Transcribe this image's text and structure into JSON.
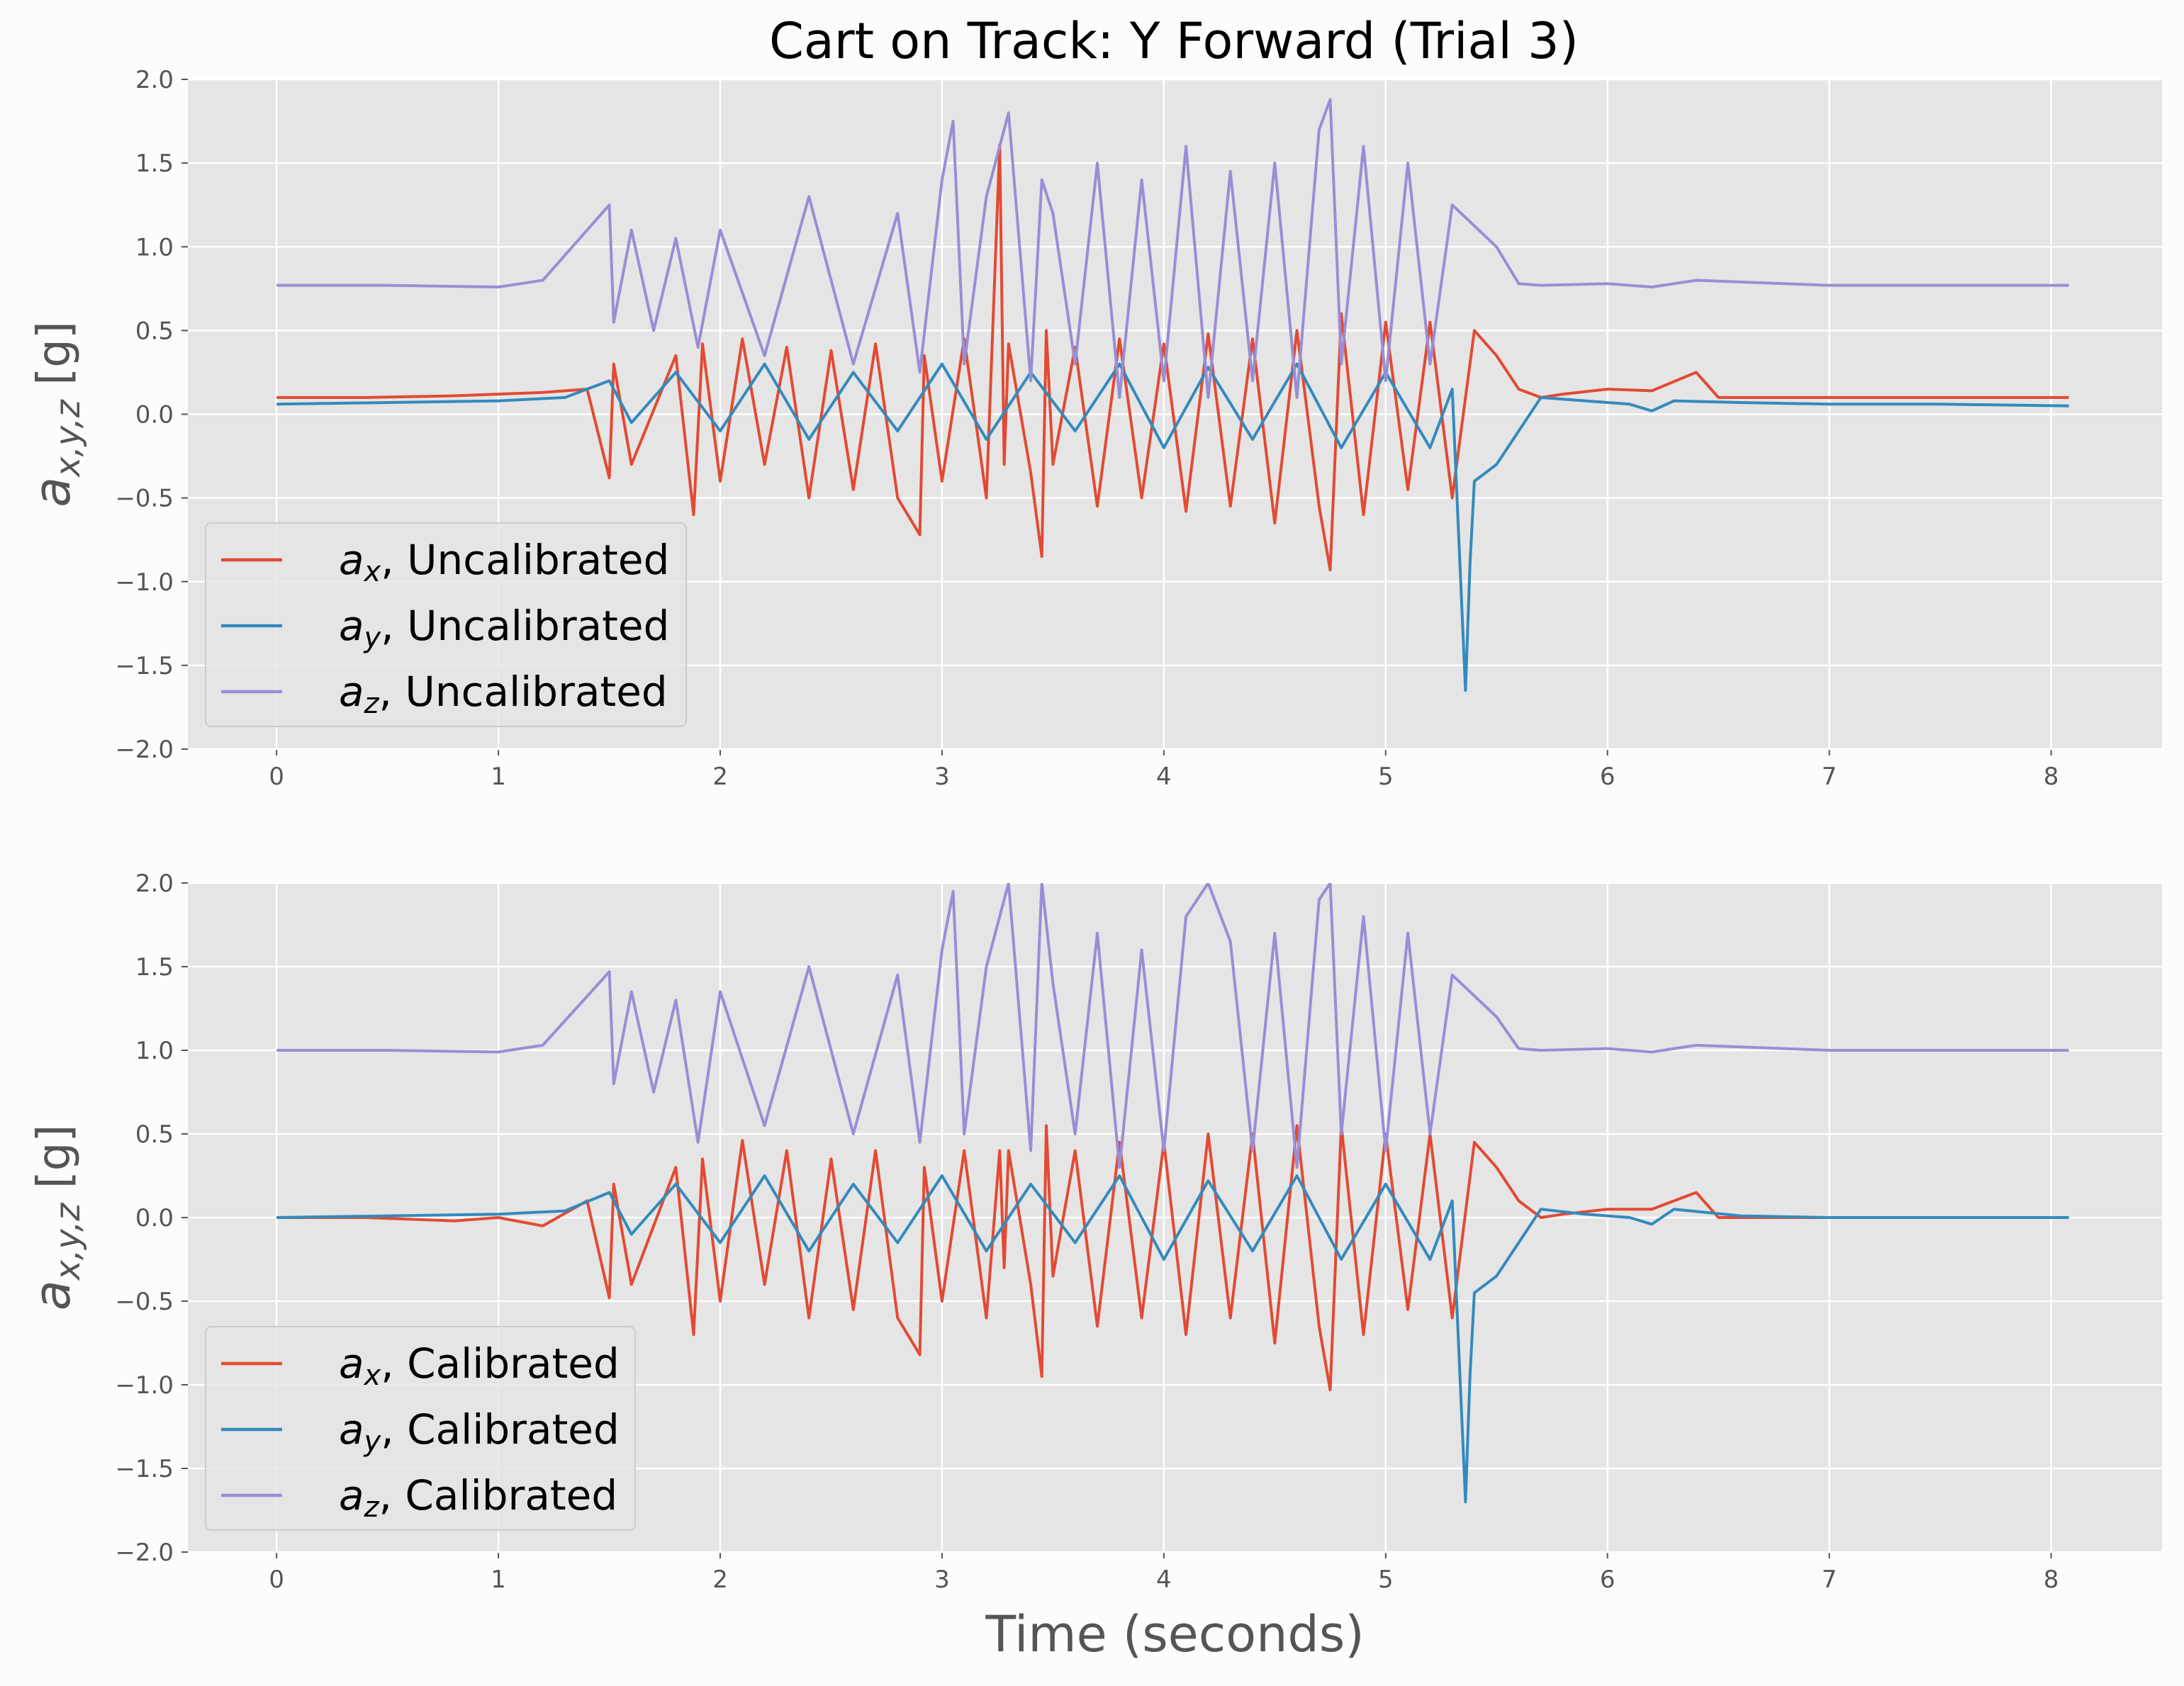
{
  "title": "Cart on Track: Y Forward (Trial 3)",
  "colors": {
    "ax": "#E24A33",
    "ay": "#348ABD",
    "az": "#988ED5",
    "panel_bg": "#E5E5E5",
    "grid": "#FFFFFF"
  },
  "chart_data": [
    {
      "type": "line",
      "ylabel": "a_{x,y,z} [g]",
      "xlabel": "",
      "xlim": [
        -0.4,
        8.5
      ],
      "ylim": [
        -2.0,
        2.0
      ],
      "xticks": [
        "0",
        "1",
        "2",
        "3",
        "4",
        "5",
        "6",
        "7",
        "8"
      ],
      "yticks": [
        "−2.0",
        "−1.5",
        "−1.0",
        "−0.5",
        "0.0",
        "0.5",
        "1.0",
        "1.5",
        "2.0"
      ],
      "grid": true,
      "legend_position": "lower-left",
      "series": [
        {
          "name": "a_x, Uncalibrated",
          "legend_var": "x",
          "legend_rest": ", Uncalibrated",
          "color": "#E24A33",
          "x": [
            0,
            0.4,
            0.8,
            1.0,
            1.2,
            1.4,
            1.5,
            1.52,
            1.6,
            1.8,
            1.88,
            1.92,
            2.0,
            2.1,
            2.2,
            2.3,
            2.4,
            2.5,
            2.6,
            2.7,
            2.8,
            2.9,
            2.92,
            3.0,
            3.1,
            3.2,
            3.26,
            3.28,
            3.3,
            3.4,
            3.45,
            3.47,
            3.5,
            3.6,
            3.7,
            3.8,
            3.9,
            4.0,
            4.1,
            4.2,
            4.3,
            4.4,
            4.5,
            4.6,
            4.7,
            4.75,
            4.8,
            4.9,
            5.0,
            5.1,
            5.2,
            5.3,
            5.4,
            5.5,
            5.6,
            5.7,
            5.8,
            6.0,
            6.2,
            6.4,
            6.5,
            7.0,
            7.5,
            8.08
          ],
          "y": [
            0.1,
            0.1,
            0.11,
            0.12,
            0.13,
            0.15,
            -0.38,
            0.3,
            -0.3,
            0.35,
            -0.6,
            0.42,
            -0.4,
            0.45,
            -0.3,
            0.4,
            -0.5,
            0.38,
            -0.45,
            0.42,
            -0.5,
            -0.72,
            0.35,
            -0.4,
            0.45,
            -0.5,
            1.61,
            -0.3,
            0.42,
            -0.35,
            -0.85,
            0.5,
            -0.3,
            0.4,
            -0.55,
            0.45,
            -0.5,
            0.42,
            -0.58,
            0.48,
            -0.55,
            0.45,
            -0.65,
            0.5,
            -0.55,
            -0.93,
            0.6,
            -0.6,
            0.55,
            -0.45,
            0.55,
            -0.5,
            0.5,
            0.35,
            0.15,
            0.1,
            0.12,
            0.15,
            0.14,
            0.25,
            0.1,
            0.1,
            0.1,
            0.1
          ]
        },
        {
          "name": "a_y, Uncalibrated",
          "legend_var": "y",
          "legend_rest": ", Uncalibrated",
          "color": "#348ABD",
          "x": [
            0,
            0.5,
            1.0,
            1.3,
            1.5,
            1.6,
            1.8,
            2.0,
            2.2,
            2.4,
            2.6,
            2.8,
            3.0,
            3.2,
            3.4,
            3.6,
            3.8,
            4.0,
            4.2,
            4.4,
            4.6,
            4.8,
            5.0,
            5.2,
            5.3,
            5.36,
            5.38,
            5.4,
            5.5,
            5.6,
            5.7,
            5.9,
            6.1,
            6.2,
            6.3,
            6.6,
            7.0,
            7.5,
            8.08
          ],
          "y": [
            0.06,
            0.07,
            0.08,
            0.1,
            0.2,
            -0.05,
            0.25,
            -0.1,
            0.3,
            -0.15,
            0.25,
            -0.1,
            0.3,
            -0.15,
            0.25,
            -0.1,
            0.3,
            -0.2,
            0.28,
            -0.15,
            0.3,
            -0.2,
            0.25,
            -0.2,
            0.15,
            -1.65,
            -0.9,
            -0.4,
            -0.3,
            -0.1,
            0.1,
            0.08,
            0.06,
            0.02,
            0.08,
            0.07,
            0.06,
            0.06,
            0.05
          ]
        },
        {
          "name": "a_z, Uncalibrated",
          "legend_var": "z",
          "legend_rest": ", Uncalibrated",
          "color": "#988ED5",
          "x": [
            0,
            0.5,
            1.0,
            1.2,
            1.5,
            1.52,
            1.6,
            1.7,
            1.8,
            1.9,
            2.0,
            2.2,
            2.4,
            2.6,
            2.8,
            2.9,
            3.0,
            3.05,
            3.1,
            3.2,
            3.3,
            3.4,
            3.45,
            3.5,
            3.6,
            3.7,
            3.8,
            3.9,
            4.0,
            4.1,
            4.2,
            4.3,
            4.4,
            4.5,
            4.6,
            4.7,
            4.75,
            4.8,
            4.9,
            5.0,
            5.1,
            5.2,
            5.3,
            5.5,
            5.6,
            5.7,
            6.0,
            6.2,
            6.4,
            7.0,
            7.5,
            8.08
          ],
          "y": [
            0.77,
            0.77,
            0.76,
            0.8,
            1.25,
            0.55,
            1.1,
            0.5,
            1.05,
            0.4,
            1.1,
            0.35,
            1.3,
            0.3,
            1.2,
            0.25,
            1.4,
            1.75,
            0.3,
            1.3,
            1.8,
            0.2,
            1.4,
            1.2,
            0.3,
            1.5,
            0.1,
            1.4,
            0.2,
            1.6,
            0.1,
            1.45,
            0.2,
            1.5,
            0.1,
            1.7,
            1.88,
            0.3,
            1.6,
            0.2,
            1.5,
            0.3,
            1.25,
            1.0,
            0.78,
            0.77,
            0.78,
            0.76,
            0.8,
            0.77,
            0.77,
            0.77
          ]
        }
      ]
    },
    {
      "type": "line",
      "ylabel": "a_{x,y,z} [g]",
      "xlabel": "Time (seconds)",
      "xlim": [
        -0.4,
        8.5
      ],
      "ylim": [
        -2.0,
        2.0
      ],
      "xticks": [
        "0",
        "1",
        "2",
        "3",
        "4",
        "5",
        "6",
        "7",
        "8"
      ],
      "yticks": [
        "−2.0",
        "−1.5",
        "−1.0",
        "−0.5",
        "0.0",
        "0.5",
        "1.0",
        "1.5",
        "2.0"
      ],
      "grid": true,
      "legend_position": "lower-left",
      "series": [
        {
          "name": "a_x, Calibrated",
          "legend_var": "x",
          "legend_rest": ", Calibrated",
          "color": "#E24A33",
          "x": [
            0,
            0.4,
            0.8,
            1.0,
            1.2,
            1.4,
            1.5,
            1.52,
            1.6,
            1.8,
            1.88,
            1.92,
            2.0,
            2.1,
            2.2,
            2.3,
            2.4,
            2.5,
            2.6,
            2.7,
            2.8,
            2.9,
            2.92,
            3.0,
            3.1,
            3.2,
            3.26,
            3.28,
            3.3,
            3.4,
            3.45,
            3.47,
            3.5,
            3.6,
            3.7,
            3.8,
            3.9,
            4.0,
            4.1,
            4.2,
            4.3,
            4.4,
            4.5,
            4.6,
            4.7,
            4.75,
            4.8,
            4.9,
            5.0,
            5.1,
            5.2,
            5.3,
            5.4,
            5.5,
            5.6,
            5.7,
            5.8,
            6.0,
            6.2,
            6.4,
            6.5,
            7.0,
            7.5,
            8.08
          ],
          "y": [
            0.0,
            0.0,
            -0.02,
            0.0,
            -0.05,
            0.1,
            -0.48,
            0.2,
            -0.4,
            0.3,
            -0.7,
            0.35,
            -0.5,
            0.46,
            -0.4,
            0.4,
            -0.6,
            0.35,
            -0.55,
            0.4,
            -0.6,
            -0.82,
            0.3,
            -0.5,
            0.4,
            -0.6,
            0.4,
            -0.3,
            0.4,
            -0.4,
            -0.95,
            0.55,
            -0.35,
            0.4,
            -0.65,
            0.45,
            -0.6,
            0.45,
            -0.7,
            0.5,
            -0.6,
            0.5,
            -0.75,
            0.55,
            -0.65,
            -1.03,
            0.55,
            -0.7,
            0.5,
            -0.55,
            0.5,
            -0.6,
            0.45,
            0.3,
            0.1,
            0.0,
            0.02,
            0.05,
            0.05,
            0.15,
            0.0,
            0.0,
            0.0,
            0.0
          ]
        },
        {
          "name": "a_y, Calibrated",
          "legend_var": "y",
          "legend_rest": ", Calibrated",
          "color": "#348ABD",
          "x": [
            0,
            0.5,
            1.0,
            1.3,
            1.5,
            1.6,
            1.8,
            2.0,
            2.2,
            2.4,
            2.6,
            2.8,
            3.0,
            3.2,
            3.4,
            3.6,
            3.8,
            4.0,
            4.2,
            4.4,
            4.6,
            4.8,
            5.0,
            5.2,
            5.3,
            5.36,
            5.38,
            5.4,
            5.5,
            5.6,
            5.7,
            5.9,
            6.1,
            6.2,
            6.3,
            6.6,
            7.0,
            7.5,
            8.08
          ],
          "y": [
            0.0,
            0.01,
            0.02,
            0.04,
            0.15,
            -0.1,
            0.2,
            -0.15,
            0.25,
            -0.2,
            0.2,
            -0.15,
            0.25,
            -0.2,
            0.2,
            -0.15,
            0.25,
            -0.25,
            0.22,
            -0.2,
            0.25,
            -0.25,
            0.2,
            -0.25,
            0.1,
            -1.7,
            -0.95,
            -0.45,
            -0.35,
            -0.15,
            0.05,
            0.02,
            0.0,
            -0.04,
            0.05,
            0.01,
            0.0,
            0.0,
            0.0
          ]
        },
        {
          "name": "a_z, Calibrated",
          "legend_var": "z",
          "legend_rest": ", Calibrated",
          "color": "#988ED5",
          "x": [
            0,
            0.5,
            1.0,
            1.2,
            1.5,
            1.52,
            1.6,
            1.7,
            1.8,
            1.9,
            2.0,
            2.2,
            2.4,
            2.6,
            2.8,
            2.9,
            3.0,
            3.05,
            3.1,
            3.2,
            3.3,
            3.4,
            3.45,
            3.5,
            3.6,
            3.7,
            3.8,
            3.9,
            4.0,
            4.1,
            4.2,
            4.3,
            4.4,
            4.5,
            4.6,
            4.7,
            4.75,
            4.8,
            4.9,
            5.0,
            5.1,
            5.2,
            5.3,
            5.5,
            5.6,
            5.7,
            6.0,
            6.2,
            6.4,
            7.0,
            7.5,
            8.08
          ],
          "y": [
            1.0,
            1.0,
            0.99,
            1.03,
            1.47,
            0.8,
            1.35,
            0.75,
            1.3,
            0.45,
            1.35,
            0.55,
            1.5,
            0.5,
            1.45,
            0.45,
            1.6,
            1.95,
            0.5,
            1.5,
            2.0,
            0.4,
            2.0,
            1.4,
            0.5,
            1.7,
            0.3,
            1.6,
            0.4,
            1.8,
            2.0,
            1.65,
            0.4,
            1.7,
            0.3,
            1.9,
            2.0,
            0.5,
            1.8,
            0.4,
            1.7,
            0.5,
            1.45,
            1.2,
            1.01,
            1.0,
            1.01,
            0.99,
            1.03,
            1.0,
            1.0,
            1.0
          ]
        }
      ]
    }
  ]
}
